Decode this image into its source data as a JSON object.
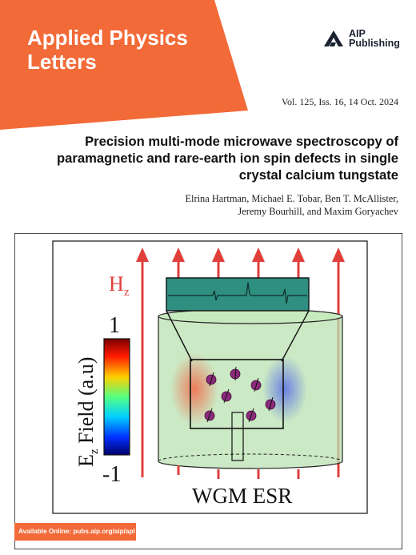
{
  "journal": {
    "title_line1": "Applied Physics",
    "title_line2": "Letters",
    "banner_color": "#f26a38"
  },
  "publisher": {
    "line1": "AIP",
    "line2": "Publishing",
    "logo_icon": "aip-logo-icon"
  },
  "issue": {
    "volume_line": "Vol. 125, Iss. 16, 14 Oct. 2024"
  },
  "article": {
    "title": "Precision multi-mode microwave spectroscopy of paramagnetic and rare-earth ion spin defects in single crystal calcium tungstate",
    "authors_line1": "Elrina Hartman, Michael E. Tobar, Ben T. McAllister,",
    "authors_line2": "Jeremy Bourhill, and Maxim Goryachev"
  },
  "figure": {
    "field_label": "Hz",
    "colorbar_label": "Ez Field (a.u)",
    "colorbar_max": "1",
    "colorbar_min": "-1",
    "caption": "WGM ESR",
    "arrow_color": "#e0403c",
    "resonator_color": "#b9e2b0",
    "spectrum_color": "#2f8f80"
  },
  "footer": {
    "availability": "Available Online: pubs.aip.org/aip/apl"
  }
}
